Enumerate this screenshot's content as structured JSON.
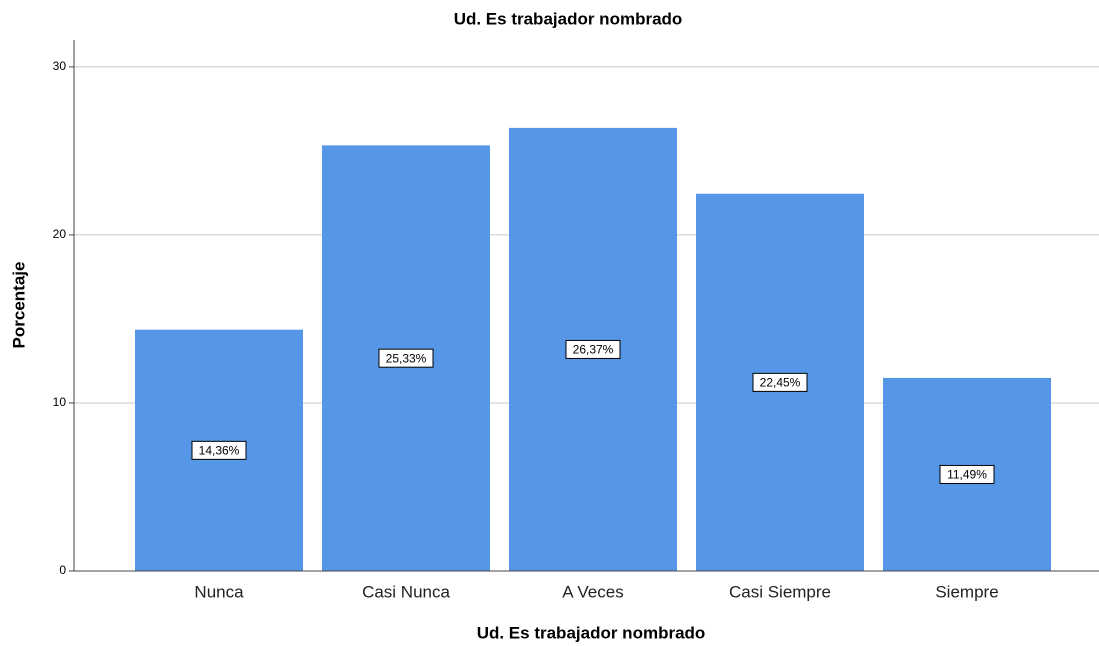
{
  "chart_data": {
    "type": "bar",
    "title": "Ud. Es trabajador nombrado",
    "x_label": "Ud. Es trabajador nombrado",
    "y_label": "Porcentaje",
    "categories": [
      "Nunca",
      "Casi Nunca",
      "A Veces",
      "Casi Siempre",
      "Siempre"
    ],
    "values": [
      14.36,
      25.33,
      26.37,
      22.45,
      11.49
    ],
    "value_labels": [
      "14,36%",
      "25,33%",
      "26,37%",
      "22,45%",
      "11,49%"
    ],
    "color": "#5596e6",
    "ylim": [
      0,
      31.6
    ],
    "yticks": [
      0,
      10,
      20,
      30
    ],
    "grid": true
  }
}
